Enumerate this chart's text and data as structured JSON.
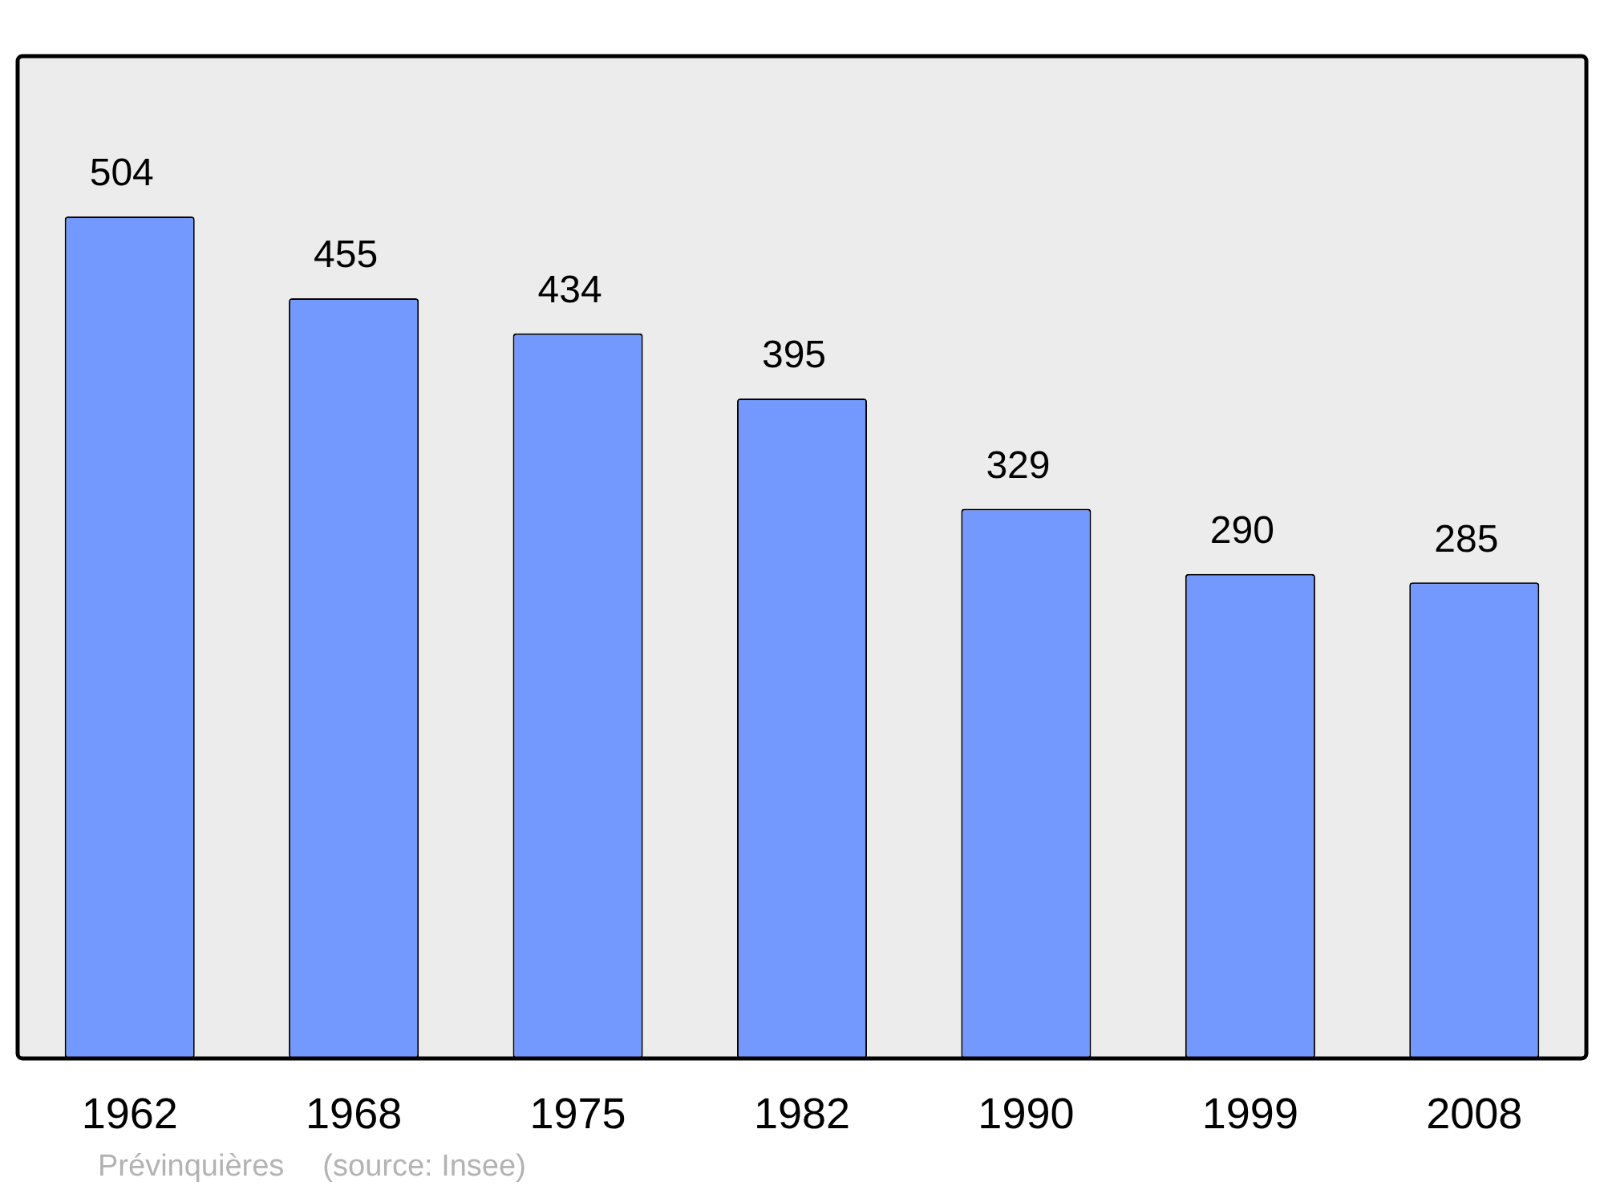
{
  "chart_data": {
    "type": "bar",
    "categories": [
      "1962",
      "1968",
      "1975",
      "1982",
      "1990",
      "1999",
      "2008"
    ],
    "values": [
      504,
      455,
      434,
      395,
      329,
      290,
      285
    ],
    "color": "#7399ff",
    "data_labels": true,
    "grid": false,
    "legend": false,
    "annotations": [
      "Prévinquières",
      "(source: Insee)"
    ]
  }
}
